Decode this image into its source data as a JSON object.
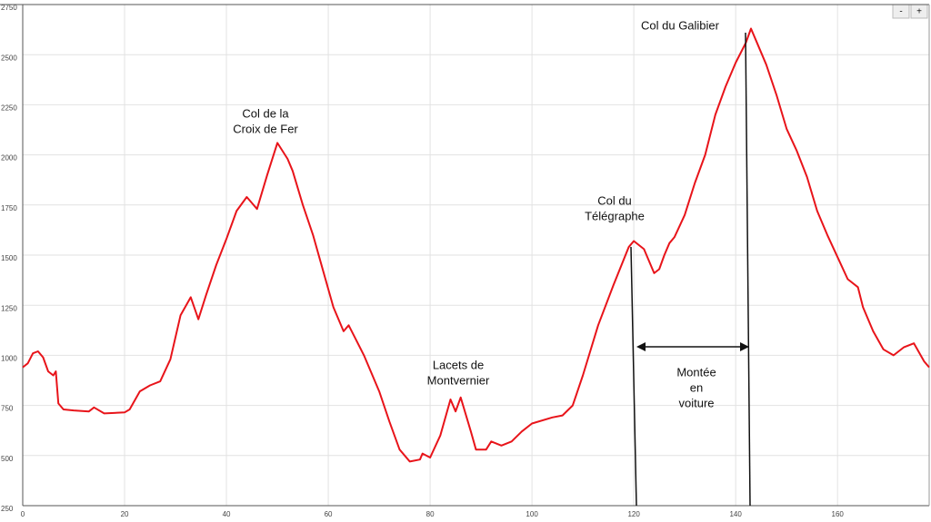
{
  "chart_data": {
    "type": "line",
    "x": [
      0,
      1,
      2,
      3,
      4,
      5,
      6,
      6.5,
      7,
      8,
      10,
      13,
      14,
      16,
      20,
      21,
      23,
      25,
      27,
      29,
      31,
      33,
      34.5,
      36,
      38,
      40,
      42,
      44,
      45,
      46,
      48,
      50,
      52,
      53,
      55,
      57,
      59,
      61,
      63,
      64,
      65,
      67,
      70,
      72,
      74,
      76,
      78,
      78.5,
      80,
      82,
      84,
      85,
      86,
      88,
      89,
      91,
      92,
      94,
      96,
      98,
      100,
      104,
      106,
      108,
      110,
      113,
      116,
      119,
      120,
      122,
      124,
      125,
      126,
      127,
      128,
      130,
      132,
      134,
      136,
      138,
      140,
      142,
      143,
      144,
      146,
      148,
      150,
      152,
      154,
      156,
      158,
      160,
      162,
      164,
      165,
      167,
      169,
      171,
      173,
      175,
      177,
      178
    ],
    "series": [
      {
        "name": null,
        "color": "#e8141a",
        "values": [
          940,
          960,
          1010,
          1020,
          990,
          920,
          900,
          920,
          760,
          730,
          725,
          720,
          740,
          710,
          715,
          730,
          820,
          850,
          870,
          980,
          1200,
          1290,
          1180,
          1300,
          1450,
          1580,
          1720,
          1790,
          1760,
          1730,
          1900,
          2060,
          1980,
          1920,
          1750,
          1600,
          1420,
          1240,
          1120,
          1150,
          1100,
          1000,
          820,
          670,
          530,
          470,
          480,
          510,
          490,
          600,
          780,
          720,
          790,
          620,
          530,
          530,
          570,
          550,
          570,
          620,
          660,
          690,
          700,
          750,
          900,
          1150,
          1350,
          1540,
          1570,
          1530,
          1410,
          1430,
          1500,
          1560,
          1590,
          1700,
          1860,
          2000,
          2200,
          2340,
          2460,
          2560,
          2630,
          2570,
          2450,
          2300,
          2130,
          2020,
          1890,
          1720,
          1600,
          1490,
          1380,
          1340,
          1240,
          1120,
          1030,
          1000,
          1040,
          1060,
          970,
          940
        ]
      }
    ],
    "xlim": [
      0,
      178
    ],
    "ylim": [
      250,
      2750
    ],
    "xticks": [
      0,
      20,
      40,
      60,
      80,
      100,
      120,
      140,
      160
    ],
    "yticks": [
      250,
      500,
      750,
      1000,
      1250,
      1500,
      1750,
      2000,
      2250,
      2500,
      2750
    ],
    "grid": true,
    "annotations": [
      {
        "text": [
          "Col de la",
          "Croix de Fer"
        ]
      },
      {
        "text": [
          "Lacets de",
          "Montvernier"
        ]
      },
      {
        "text": [
          "Col du",
          "Télégraphe"
        ]
      },
      {
        "text": [
          "Col du Galibier"
        ]
      },
      {
        "text": [
          "Montée",
          "en",
          "voiture"
        ]
      }
    ],
    "zoom_controls": [
      "-",
      "+"
    ]
  }
}
